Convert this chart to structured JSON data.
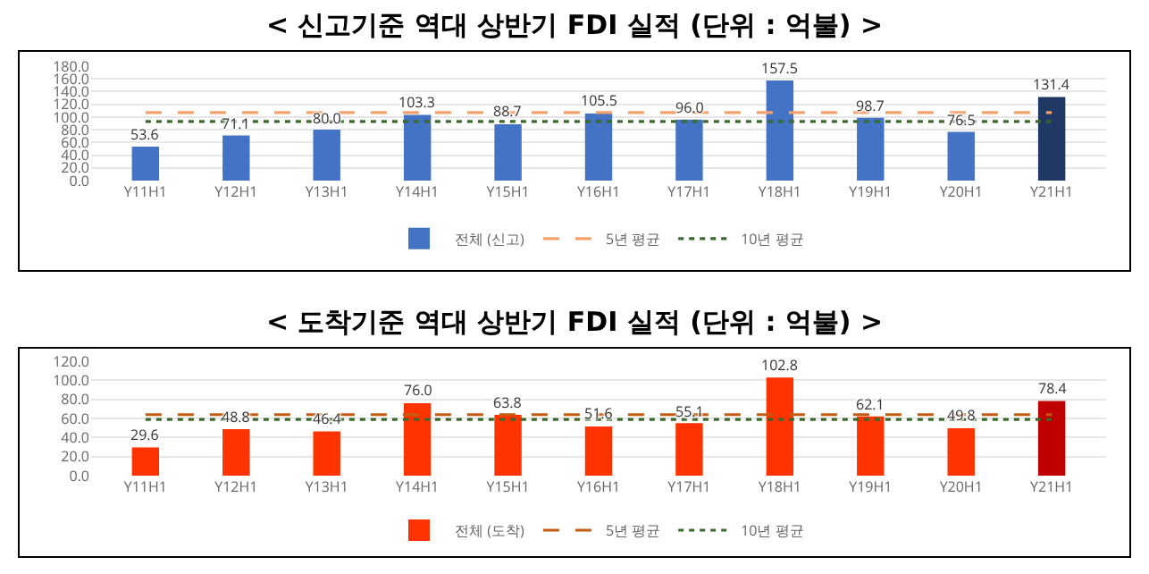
{
  "chart_data": [
    {
      "type": "bar",
      "title": "< 신고기준 역대 상반기 FDI 실적 (단위 : 억불) >",
      "categories": [
        "Y11H1",
        "Y12H1",
        "Y13H1",
        "Y14H1",
        "Y15H1",
        "Y16H1",
        "Y17H1",
        "Y18H1",
        "Y19H1",
        "Y20H1",
        "Y21H1"
      ],
      "series": [
        {
          "name": "전체 (신고)",
          "colors": [
            "#4472c4",
            "#4472c4",
            "#4472c4",
            "#4472c4",
            "#4472c4",
            "#4472c4",
            "#4472c4",
            "#4472c4",
            "#4472c4",
            "#4472c4",
            "#203864"
          ],
          "values": [
            53.6,
            71.1,
            80.0,
            103.3,
            88.7,
            105.5,
            96.0,
            157.5,
            98.7,
            76.5,
            131.4
          ]
        },
        {
          "name": "5년 평균",
          "type": "line",
          "color": "#f4a16b",
          "line_style": "dashed",
          "values": [
            107,
            107,
            107,
            107,
            107,
            107,
            107,
            107,
            107,
            107,
            107
          ]
        },
        {
          "name": "10년 평균",
          "type": "line",
          "color": "#38682c",
          "line_style": "dotted",
          "values": [
            93,
            93,
            93,
            93,
            93,
            93,
            93,
            93,
            93,
            93,
            93
          ]
        }
      ],
      "value_labels": [
        "53.6",
        "71.1",
        "80.0",
        "103.3",
        "88.7",
        "105.5",
        "96.0",
        "157.5",
        "98.7",
        "76.5",
        "131.4"
      ],
      "ylim": [
        0,
        180
      ],
      "yticks": [
        {
          "value": 0,
          "label": "0.0"
        },
        {
          "value": 20,
          "label": "20.0"
        },
        {
          "value": 40,
          "label": "40.0"
        },
        {
          "value": 60,
          "label": "60.0"
        },
        {
          "value": 80,
          "label": "80.0"
        },
        {
          "value": 100,
          "label": "100.0"
        },
        {
          "value": 120,
          "label": "120.0"
        },
        {
          "value": 140,
          "label": "140.0"
        },
        {
          "value": 160,
          "label": "160.0"
        },
        {
          "value": 180,
          "label": "180.0"
        }
      ],
      "grid": "y",
      "legend": "bottom",
      "marker": "none"
    },
    {
      "type": "bar",
      "title": "< 도착기준 역대 상반기 FDI 실적 (단위 : 억불) >",
      "categories": [
        "Y11H1",
        "Y12H1",
        "Y13H1",
        "Y14H1",
        "Y15H1",
        "Y16H1",
        "Y17H1",
        "Y18H1",
        "Y19H1",
        "Y20H1",
        "Y21H1"
      ],
      "series": [
        {
          "name": "전체 (도착)",
          "colors": [
            "#ff3300",
            "#ff3300",
            "#ff3300",
            "#ff3300",
            "#ff3300",
            "#ff3300",
            "#ff3300",
            "#ff3300",
            "#ff3300",
            "#ff3300",
            "#c00000"
          ],
          "values": [
            29.6,
            48.8,
            46.4,
            76.0,
            63.8,
            51.6,
            55.1,
            102.8,
            62.1,
            49.8,
            78.4
          ]
        },
        {
          "name": "5년 평균",
          "type": "line",
          "color": "#c55a11",
          "line_style": "dashed",
          "values": [
            64,
            64,
            64,
            64,
            64,
            64,
            64,
            64,
            64,
            64,
            64
          ]
        },
        {
          "name": "10년 평균",
          "type": "line",
          "color": "#38682c",
          "line_style": "dotted",
          "values": [
            59,
            59,
            59,
            59,
            59,
            59,
            59,
            59,
            59,
            59,
            59
          ]
        }
      ],
      "value_labels": [
        "29.6",
        "48.8",
        "46.4",
        "76.0",
        "63.8",
        "51.6",
        "55.1",
        "102.8",
        "62.1",
        "49.8",
        "78.4"
      ],
      "ylim": [
        0,
        120
      ],
      "yticks": [
        {
          "value": 0,
          "label": "0.0"
        },
        {
          "value": 20,
          "label": "20.0"
        },
        {
          "value": 40,
          "label": "40.0"
        },
        {
          "value": 60,
          "label": "60.0"
        },
        {
          "value": 80,
          "label": "80.0"
        },
        {
          "value": 100,
          "label": "100.0"
        },
        {
          "value": 120,
          "label": "120.0"
        }
      ],
      "grid": "y",
      "legend": "bottom",
      "marker": "none"
    }
  ]
}
